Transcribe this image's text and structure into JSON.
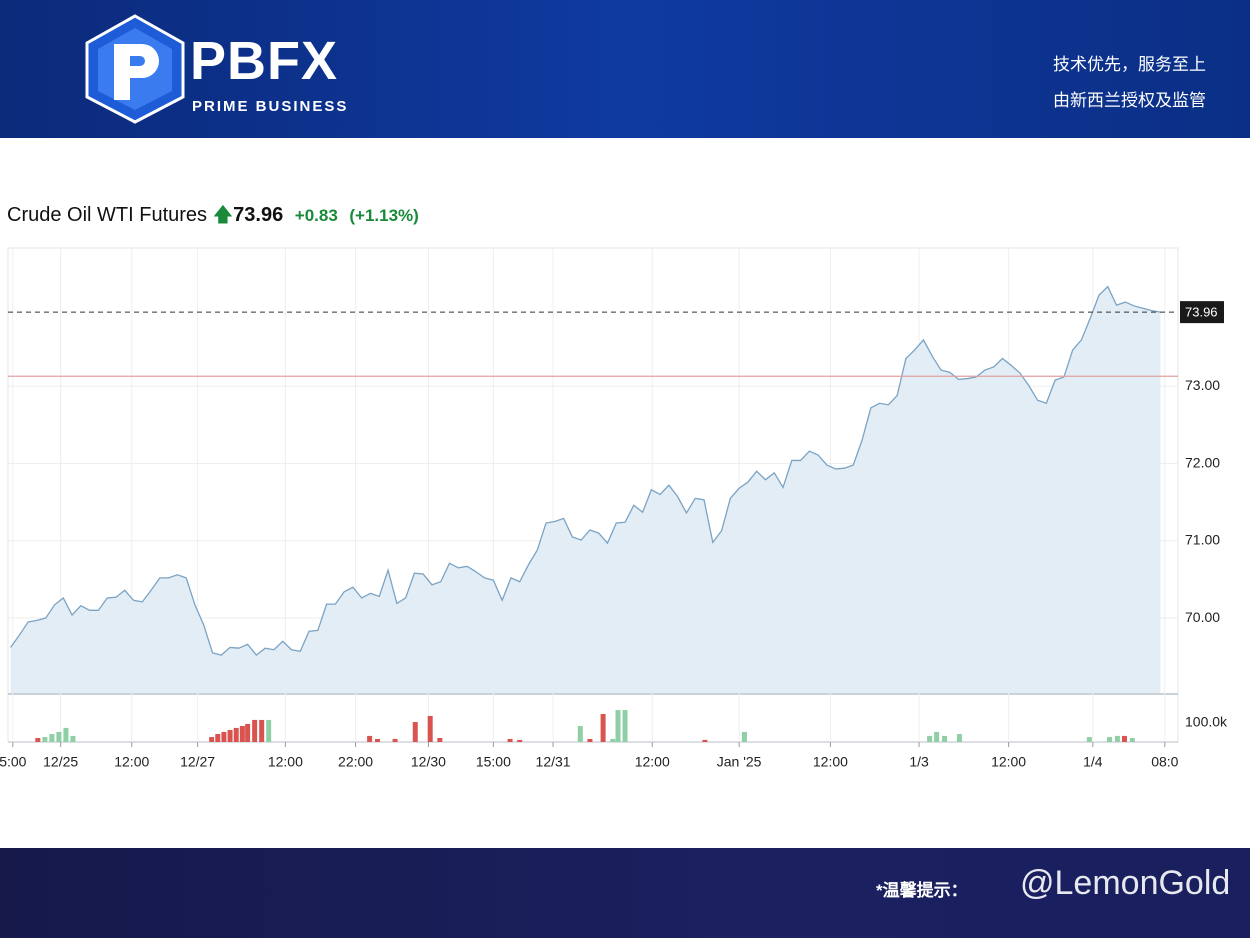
{
  "header": {
    "brand": "PBFX",
    "tagline": "PRIME BUSINESS",
    "slogan_1": "技术优先，服务至上",
    "slogan_2": "由新西兰授权及监管"
  },
  "quote": {
    "name": "Crude Oil WTI Futures",
    "last_price": 73.96,
    "change": "+0.83",
    "change_pct": "(+1.13%)",
    "prev_close": 73.13
  },
  "footer": {
    "notice": "*温馨提示：",
    "watermark": "@LemonGold"
  },
  "chart_data": [
    {
      "type": "line",
      "series": [
        {
          "name": "Crude Oil WTI Futures",
          "color": "#7ba3c4",
          "values": [
            69.62,
            69.78,
            69.95,
            69.97,
            70.0,
            70.17,
            70.26,
            70.04,
            70.16,
            70.1,
            70.1,
            70.26,
            70.27,
            70.36,
            70.23,
            70.21,
            70.36,
            70.52,
            70.52,
            70.56,
            70.52,
            70.17,
            69.91,
            69.55,
            69.52,
            69.62,
            69.61,
            69.66,
            69.52,
            69.61,
            69.59,
            69.7,
            69.59,
            69.57,
            69.83,
            69.84,
            70.18,
            70.18,
            70.34,
            70.4,
            70.26,
            70.32,
            70.28,
            70.62,
            70.19,
            70.26,
            70.58,
            70.57,
            70.43,
            70.47,
            70.71,
            70.65,
            70.67,
            70.6,
            70.52,
            70.49,
            70.23,
            70.52,
            70.47,
            70.69,
            70.88,
            71.23,
            71.25,
            71.29,
            71.05,
            71.01,
            71.14,
            71.1,
            70.97,
            71.23,
            71.24,
            71.46,
            71.37,
            71.66,
            71.6,
            71.72,
            71.57,
            71.36,
            71.55,
            71.53,
            70.98,
            71.13,
            71.55,
            71.68,
            71.76,
            71.9,
            71.79,
            71.88,
            71.69,
            72.04,
            72.04,
            72.16,
            72.11,
            71.98,
            71.93,
            71.94,
            71.98,
            72.3,
            72.72,
            72.78,
            72.76,
            72.88,
            73.36,
            73.47,
            73.6,
            73.39,
            73.21,
            73.18,
            73.09,
            73.1,
            73.12,
            73.21,
            73.25,
            73.36,
            73.27,
            73.17,
            73.01,
            72.82,
            72.78,
            73.08,
            73.12,
            73.47,
            73.6,
            73.88,
            74.18,
            74.29,
            74.05,
            74.09,
            74.04,
            74.01,
            73.98,
            73.96
          ]
        }
      ],
      "fill": "#e3edf5",
      "ylim": [
        69.03,
        74.79
      ],
      "yticks": [
        {
          "value": 70,
          "label": "70.00"
        },
        {
          "value": 71,
          "label": "71.00"
        },
        {
          "value": 72,
          "label": "72.00"
        },
        {
          "value": 73,
          "label": "73.00"
        }
      ],
      "xlim": [
        -0.3,
        133
      ],
      "xticks": [
        {
          "value": 0.25,
          "label": "5:00"
        },
        {
          "value": 5.7,
          "label": "12/25"
        },
        {
          "value": 13.8,
          "label": "12:00"
        },
        {
          "value": 21.3,
          "label": "12/27"
        },
        {
          "value": 31.3,
          "label": "12:00"
        },
        {
          "value": 39.3,
          "label": "22:00"
        },
        {
          "value": 47.6,
          "label": "12/30"
        },
        {
          "value": 55,
          "label": "15:00"
        },
        {
          "value": 61.8,
          "label": "12/31"
        },
        {
          "value": 73.1,
          "label": "12:00"
        },
        {
          "value": 83,
          "label": "Jan '25"
        },
        {
          "value": 93.4,
          "label": "12:00"
        },
        {
          "value": 103.5,
          "label": "1/3"
        },
        {
          "value": 113.7,
          "label": "12:00"
        },
        {
          "value": 123.3,
          "label": "1/4"
        },
        {
          "value": 131.5,
          "label": "08:0"
        }
      ],
      "grid": true
    },
    {
      "type": "bar",
      "x": [
        3.1,
        3.9,
        4.7,
        5.5,
        6.3,
        7.1,
        22.9,
        23.6,
        24.3,
        25,
        25.7,
        26.4,
        27.0,
        27.8,
        28.6,
        29.4,
        40.9,
        41.8,
        43.8,
        46.1,
        47.8,
        48.9,
        56.9,
        58.0,
        64.9,
        66.0,
        67.5,
        68.6,
        69.2,
        70.0,
        79.1,
        83.6,
        104.7,
        105.5,
        106.4,
        108.1,
        122.9,
        125.2,
        126.1,
        126.9,
        127.8
      ],
      "values": [
        21000,
        26000,
        42000,
        53000,
        74000,
        32000,
        26000,
        42000,
        53000,
        63000,
        74000,
        84000,
        95000,
        116000,
        116000,
        116000,
        32000,
        16000,
        16000,
        105000,
        137000,
        21000,
        16000,
        11000,
        84000,
        16000,
        147000,
        16000,
        168000,
        168000,
        11000,
        53000,
        32000,
        53000,
        32000,
        42000,
        26000,
        26000,
        32000,
        32000,
        21000
      ],
      "colors": [
        "#d9534f",
        "#8fcfa5",
        "#8fcfa5",
        "#8fcfa5",
        "#8fcfa5",
        "#8fcfa5",
        "#d9534f",
        "#d9534f",
        "#d9534f",
        "#d9534f",
        "#d9534f",
        "#d9534f",
        "#d9534f",
        "#d9534f",
        "#d9534f",
        "#8fcfa5",
        "#d9534f",
        "#d9534f",
        "#d9534f",
        "#d9534f",
        "#d9534f",
        "#d9534f",
        "#d9534f",
        "#d9534f",
        "#8fcfa5",
        "#d9534f",
        "#d9534f",
        "#8fcfa5",
        "#8fcfa5",
        "#8fcfa5",
        "#d9534f",
        "#8fcfa5",
        "#8fcfa5",
        "#8fcfa5",
        "#8fcfa5",
        "#8fcfa5",
        "#8fcfa5",
        "#8fcfa5",
        "#8fcfa5",
        "#d9534f",
        "#8fcfa5"
      ],
      "ylim": [
        0,
        247000
      ],
      "yticks": [
        {
          "value": 100000,
          "label": "100.0k"
        }
      ],
      "xlim": [
        -0.3,
        133
      ]
    }
  ]
}
